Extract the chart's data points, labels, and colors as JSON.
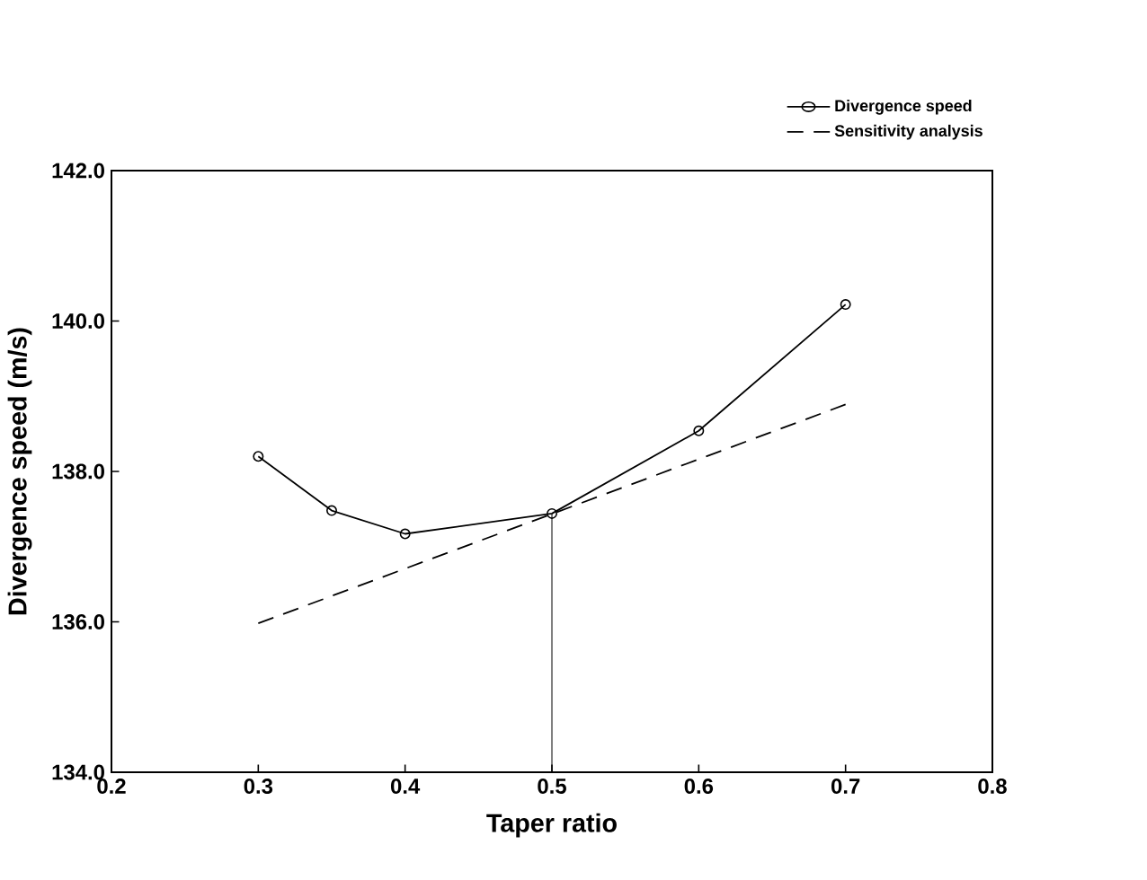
{
  "chart_data": {
    "type": "line",
    "xlabel": "Taper ratio",
    "ylabel": "Divergence speed  (m/s)",
    "xlim": [
      0.2,
      0.8
    ],
    "ylim": [
      134,
      142
    ],
    "xticks": [
      0.2,
      0.3,
      0.4,
      0.5,
      0.6,
      0.7,
      0.8
    ],
    "yticks": [
      {
        "value": 134,
        "label": "134.0"
      },
      {
        "value": 136,
        "label": "136.0"
      },
      {
        "value": 138,
        "label": "138.0"
      },
      {
        "value": 140,
        "label": "140.0"
      },
      {
        "value": 142,
        "label": "142.0"
      }
    ],
    "legend": "top right",
    "grid": false,
    "series": [
      {
        "name": "Divergence speed",
        "color": "#000000",
        "marker": "circle",
        "line_style": "solid",
        "x": [
          0.3,
          0.35,
          0.4,
          0.5,
          0.6,
          0.7
        ],
        "values": [
          138.2,
          137.48,
          137.17,
          137.44,
          138.54,
          140.22
        ]
      },
      {
        "name": "Sensitivity analysis",
        "color": "#000000",
        "marker": "none",
        "line_style": "dashed",
        "x": [
          0.3,
          0.7
        ],
        "values": [
          135.98,
          138.89
        ]
      }
    ],
    "ref_lines": [
      {
        "axis": "x",
        "value": 0.5,
        "color": "#000000",
        "line_style": "solid"
      }
    ]
  }
}
